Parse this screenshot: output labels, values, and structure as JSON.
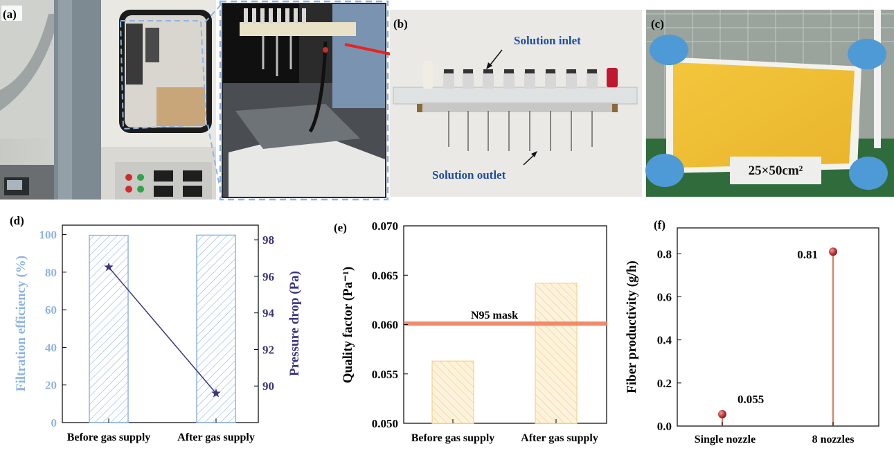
{
  "panel_labels": {
    "a": "(a)",
    "b": "(b)",
    "c": "(c)",
    "d": "(d)",
    "e": "(e)",
    "f": "(f)"
  },
  "photo_b": {
    "inlet": "Solution inlet",
    "outlet": "Solution outlet"
  },
  "photo_c": {
    "size": "25×50cm²"
  },
  "colors": {
    "efficiency": "#8fb4e3",
    "pressure": "#3a3580",
    "yellow": "#f4d28a",
    "n95": "#f08a6a",
    "stem": "#e07a5f",
    "dot": "#c43d3d",
    "arrow": "#e8231c"
  },
  "chart_data": [
    {
      "type": "bar",
      "categories": [
        "Before gas supply",
        "After gas supply"
      ],
      "series": [
        {
          "values": [
            99.6,
            99.7
          ]
        },
        {
          "values": [
            96.5,
            89.6
          ]
        }
      ],
      "ylabel": "Filtration efficiency (%)",
      "y2label": "Pressure drop (Pa)",
      "ylim": [
        0,
        105
      ],
      "y2lim": [
        88,
        98.8
      ],
      "yticks": [
        "0",
        "20",
        "40",
        "60",
        "80",
        "100"
      ],
      "y2ticks": [
        "90",
        "92",
        "94",
        "96",
        "98"
      ]
    },
    {
      "type": "bar",
      "categories": [
        "Before gas supply",
        "After gas supply"
      ],
      "values": [
        0.0563,
        0.0642
      ],
      "ylabel": "Quality factor (Pa⁻¹)",
      "ylim": [
        0.05,
        0.07
      ],
      "yticks": [
        "0.050",
        "0.055",
        "0.060",
        "0.065",
        "0.070"
      ],
      "reference_line": {
        "label": "N95 mask",
        "value": 0.0601
      }
    },
    {
      "type": "scatter",
      "categories": [
        "Single nozzle",
        "8 nozzles"
      ],
      "values": [
        0.055,
        0.81
      ],
      "data_labels": [
        "0.055",
        "0.81"
      ],
      "ylabel": "Fiber productivity (g/h)",
      "ylim": [
        0,
        0.92
      ],
      "yticks": [
        "0.0",
        "0.2",
        "0.4",
        "0.6",
        "0.8"
      ]
    }
  ]
}
